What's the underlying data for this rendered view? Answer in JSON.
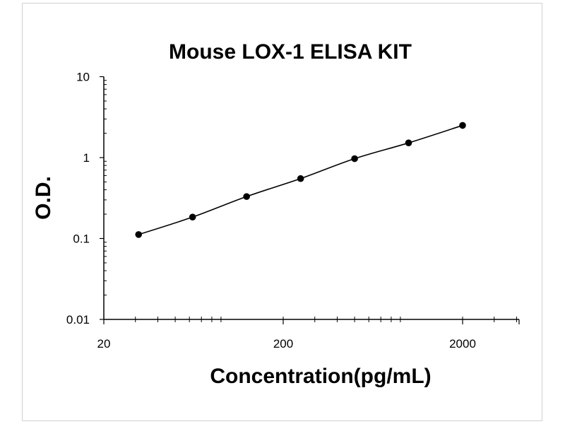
{
  "chart_data": {
    "type": "scatter",
    "title": "Mouse LOX-1 ELISA KIT",
    "xlabel": "Concentration(pg/mL)",
    "ylabel": "O.D.",
    "x_scale": "log",
    "y_scale": "log",
    "xlim": [
      20,
      5000
    ],
    "ylim": [
      0.01,
      10
    ],
    "x_ticks": [
      20,
      200,
      2000
    ],
    "x_tick_labels": [
      "20",
      "200",
      "2000"
    ],
    "y_ticks": [
      0.01,
      0.1,
      1,
      10
    ],
    "y_tick_labels": [
      "0.01",
      "0.1",
      "1",
      "10"
    ],
    "fit_line": true,
    "grid": false,
    "legend": "none",
    "series": [
      {
        "x": [
          31.25,
          62.5,
          125,
          250,
          500,
          1000,
          2000
        ],
        "y": [
          0.112,
          0.184,
          0.33,
          0.55,
          0.97,
          1.52,
          2.5
        ]
      }
    ]
  },
  "colors": {
    "marker": "#000000",
    "line": "#000000",
    "axis": "#000000",
    "frame": "#d0d0d0"
  }
}
